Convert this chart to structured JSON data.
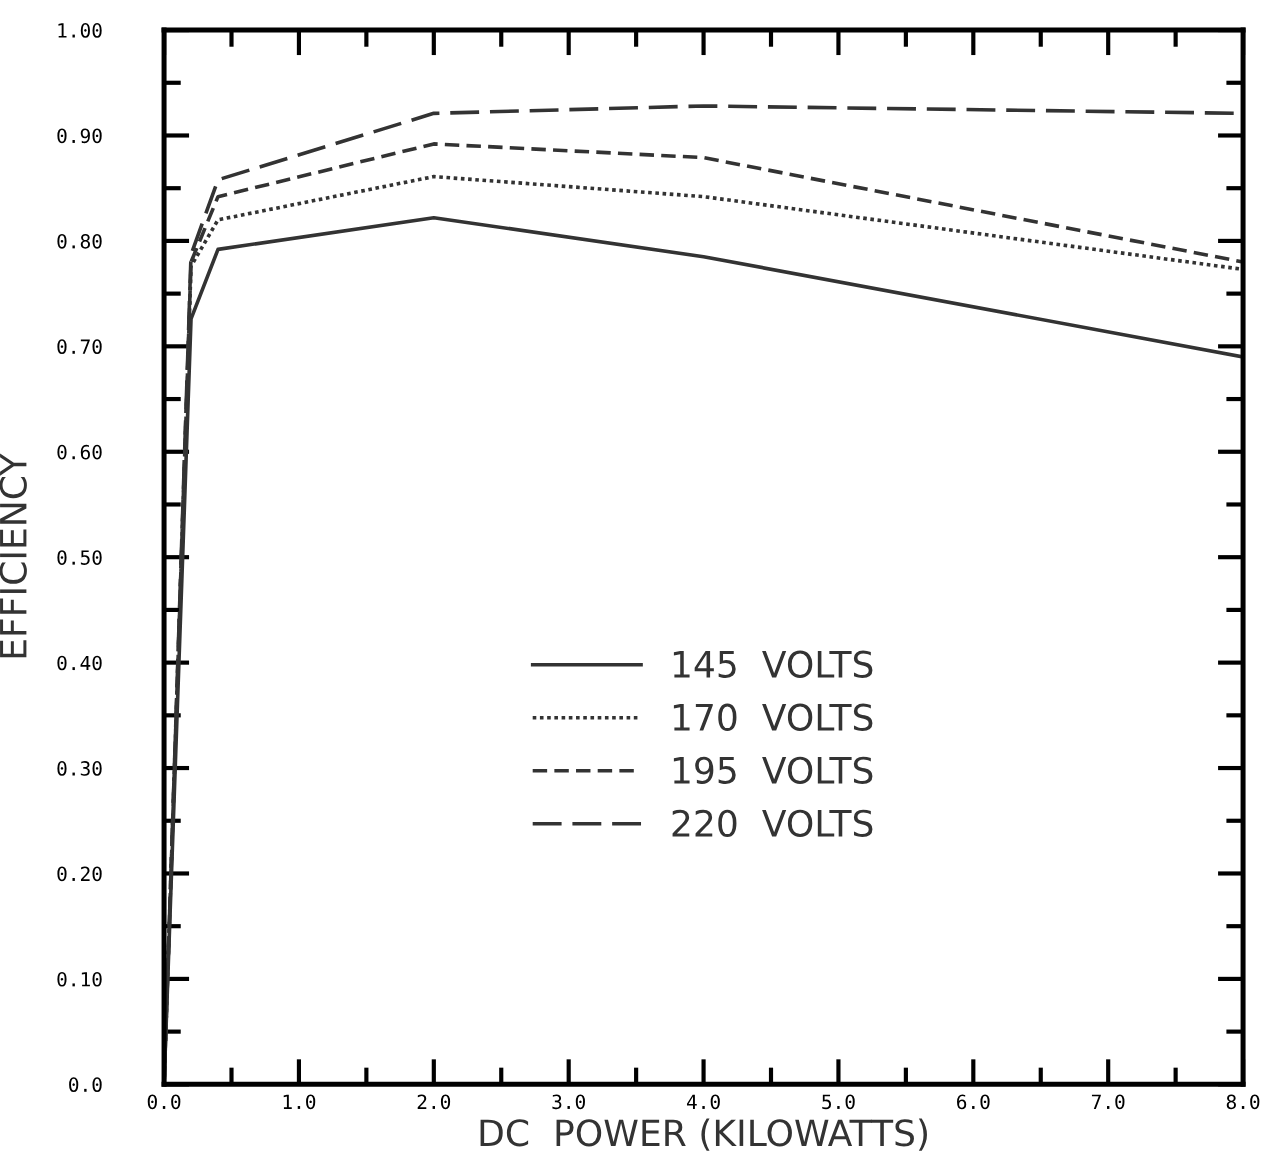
{
  "chart_data": {
    "type": "line",
    "xlabel": "DC  POWER (KILOWATTS)",
    "ylabel": "EFFICIENCY",
    "x": [
      0,
      0.2,
      0.4,
      2.0,
      4.0,
      8.0
    ],
    "series": [
      {
        "name": "145  VOLTS",
        "color": "#333333",
        "line_style": "solid",
        "values": [
          0,
          0.726,
          0.792,
          0.822,
          0.785,
          0.69
        ]
      },
      {
        "name": "170  VOLTS",
        "color": "#333333",
        "line_style": "dotted",
        "values": [
          0,
          0.776,
          0.82,
          0.861,
          0.842,
          0.773
        ]
      },
      {
        "name": "195  VOLTS",
        "color": "#333333",
        "line_style": "dashed",
        "values": [
          0,
          0.78,
          0.842,
          0.892,
          0.879,
          0.78
        ]
      },
      {
        "name": "220  VOLTS",
        "color": "#333333",
        "line_style": "longdash",
        "values": [
          0,
          0.787,
          0.858,
          0.921,
          0.928,
          0.921
        ]
      }
    ],
    "xlim": [
      0,
      8
    ],
    "ylim": [
      0,
      1
    ],
    "xticks": [
      {
        "value": 0,
        "label": "0.0"
      },
      {
        "value": 1,
        "label": "1.0"
      },
      {
        "value": 2,
        "label": "2.0"
      },
      {
        "value": 3,
        "label": "3.0"
      },
      {
        "value": 4,
        "label": "4.0"
      },
      {
        "value": 5,
        "label": "5.0"
      },
      {
        "value": 6,
        "label": "6.0"
      },
      {
        "value": 7,
        "label": "7.0"
      },
      {
        "value": 8,
        "label": "8.0"
      }
    ],
    "yticks": [
      {
        "value": 0,
        "label": "0.0"
      },
      {
        "value": 0.1,
        "label": "0.10"
      },
      {
        "value": 0.2,
        "label": "0.20"
      },
      {
        "value": 0.3,
        "label": "0.30"
      },
      {
        "value": 0.4,
        "label": "0.40"
      },
      {
        "value": 0.5,
        "label": "0.50"
      },
      {
        "value": 0.6,
        "label": "0.60"
      },
      {
        "value": 0.7,
        "label": "0.70"
      },
      {
        "value": 0.8,
        "label": "0.80"
      },
      {
        "value": 0.9,
        "label": "0.90"
      },
      {
        "value": 1,
        "label": "1.00"
      }
    ],
    "grid": false,
    "legend": "center",
    "marker": "none"
  }
}
